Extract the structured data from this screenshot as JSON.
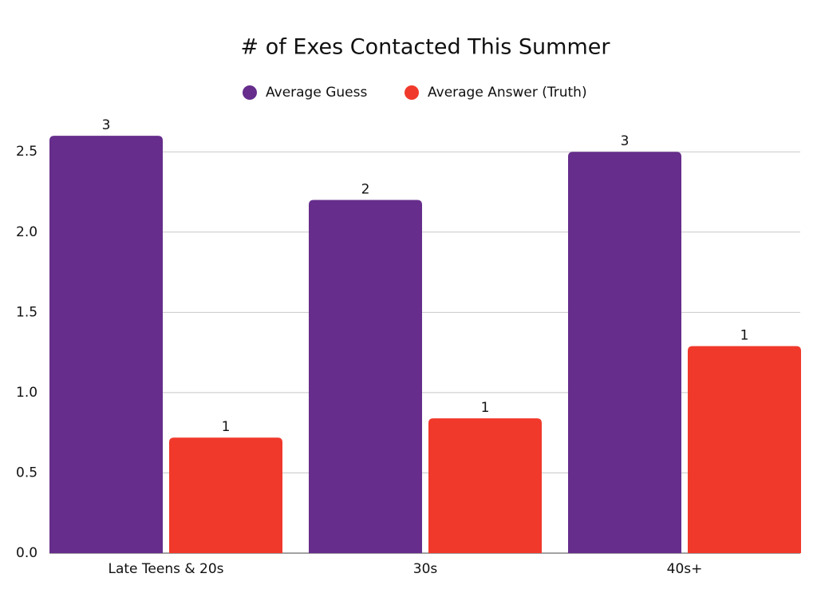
{
  "chart_data": {
    "type": "bar",
    "title": "# of Exes Contacted This Summer",
    "categories": [
      "Late Teens & 20s",
      "30s",
      "40s+"
    ],
    "series": [
      {
        "name": "Average Guess",
        "color": "#662d8c",
        "values": [
          2.6,
          2.2,
          2.5
        ],
        "value_labels": [
          "3",
          "2",
          "3"
        ]
      },
      {
        "name": "Average Answer (Truth)",
        "color": "#f0392b",
        "values": [
          0.72,
          0.84,
          1.29
        ],
        "value_labels": [
          "1",
          "1",
          "1"
        ]
      }
    ],
    "ylim": [
      0,
      2.7
    ],
    "yticks": [
      {
        "value": 0,
        "label": "0.0"
      },
      0.5,
      {
        "value": 1,
        "label": "1.0"
      },
      1.5,
      {
        "value": 2,
        "label": "2.0"
      },
      2.5
    ],
    "grid": true,
    "legend": "top"
  }
}
